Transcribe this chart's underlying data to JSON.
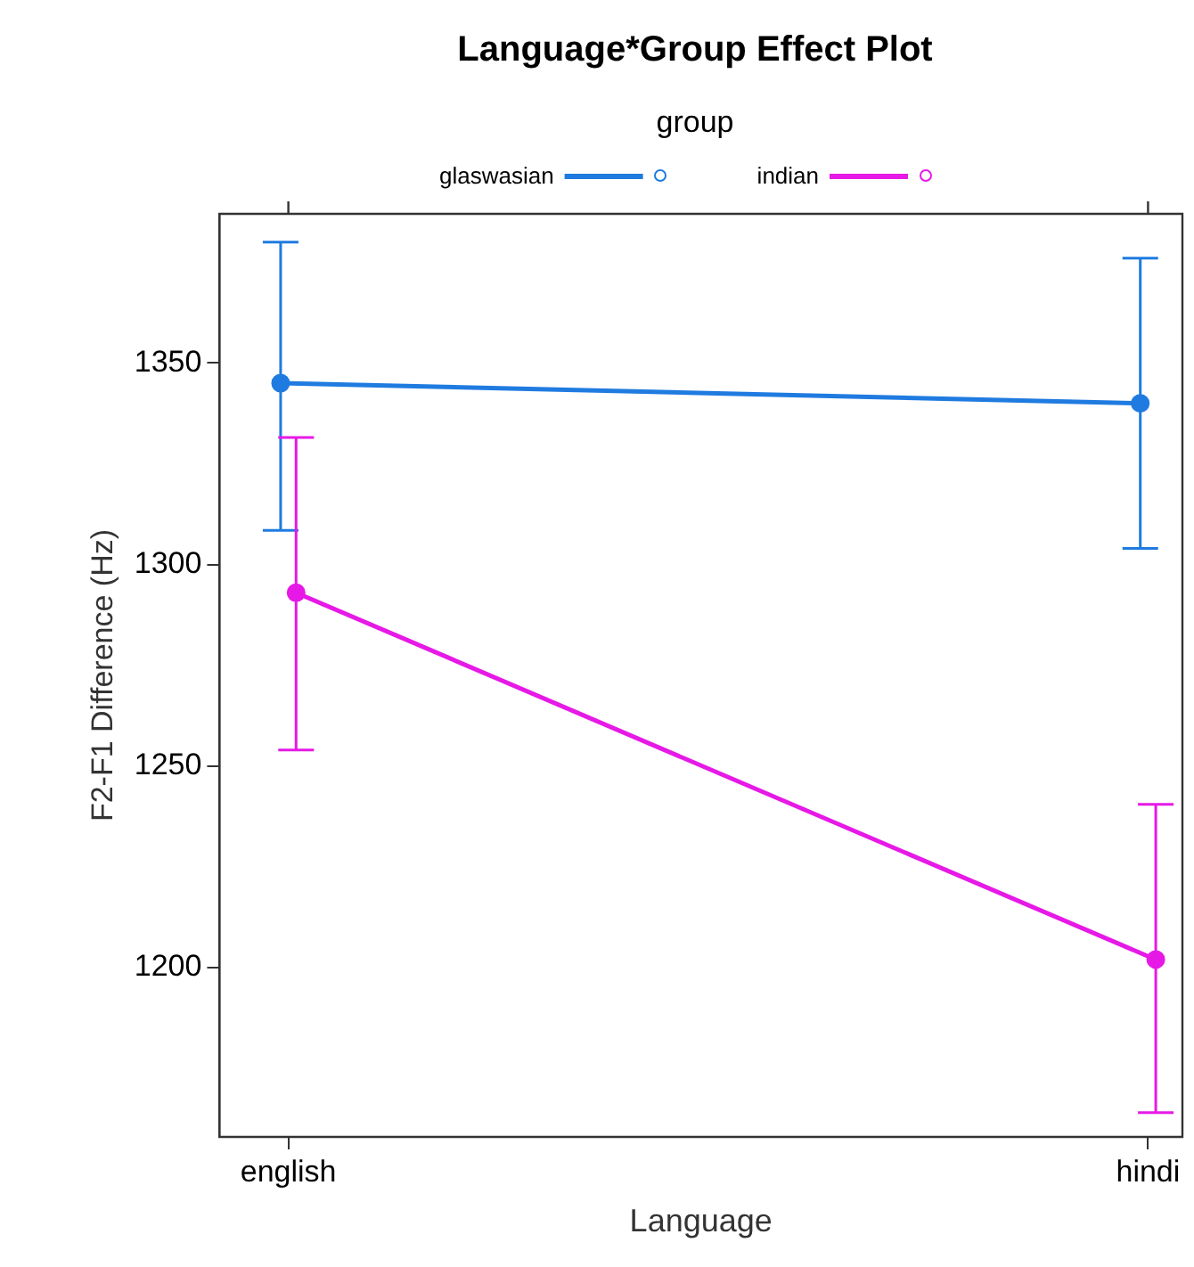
{
  "chart_data": {
    "type": "line",
    "title": "Language*Group Effect Plot",
    "xlabel": "Language",
    "ylabel": "F2-F1 Difference (Hz)",
    "legend_title": "group",
    "legend": "top",
    "marker": "circle",
    "grid": false,
    "categories": [
      "english",
      "hindi"
    ],
    "ylim": [
      1158,
      1387
    ],
    "yticks": [
      1200,
      1250,
      1300,
      1350
    ],
    "series": [
      {
        "name": "glaswasian",
        "color": "#1f7be0",
        "values": [
          1345,
          1340
        ],
        "errors": [
          [
            1308.5,
            1380
          ],
          [
            1304,
            1376
          ]
        ]
      },
      {
        "name": "indian",
        "color": "#e619e6",
        "values": [
          1293,
          1202
        ],
        "errors": [
          [
            1254,
            1331.5
          ],
          [
            1164,
            1240.5
          ]
        ]
      }
    ]
  }
}
